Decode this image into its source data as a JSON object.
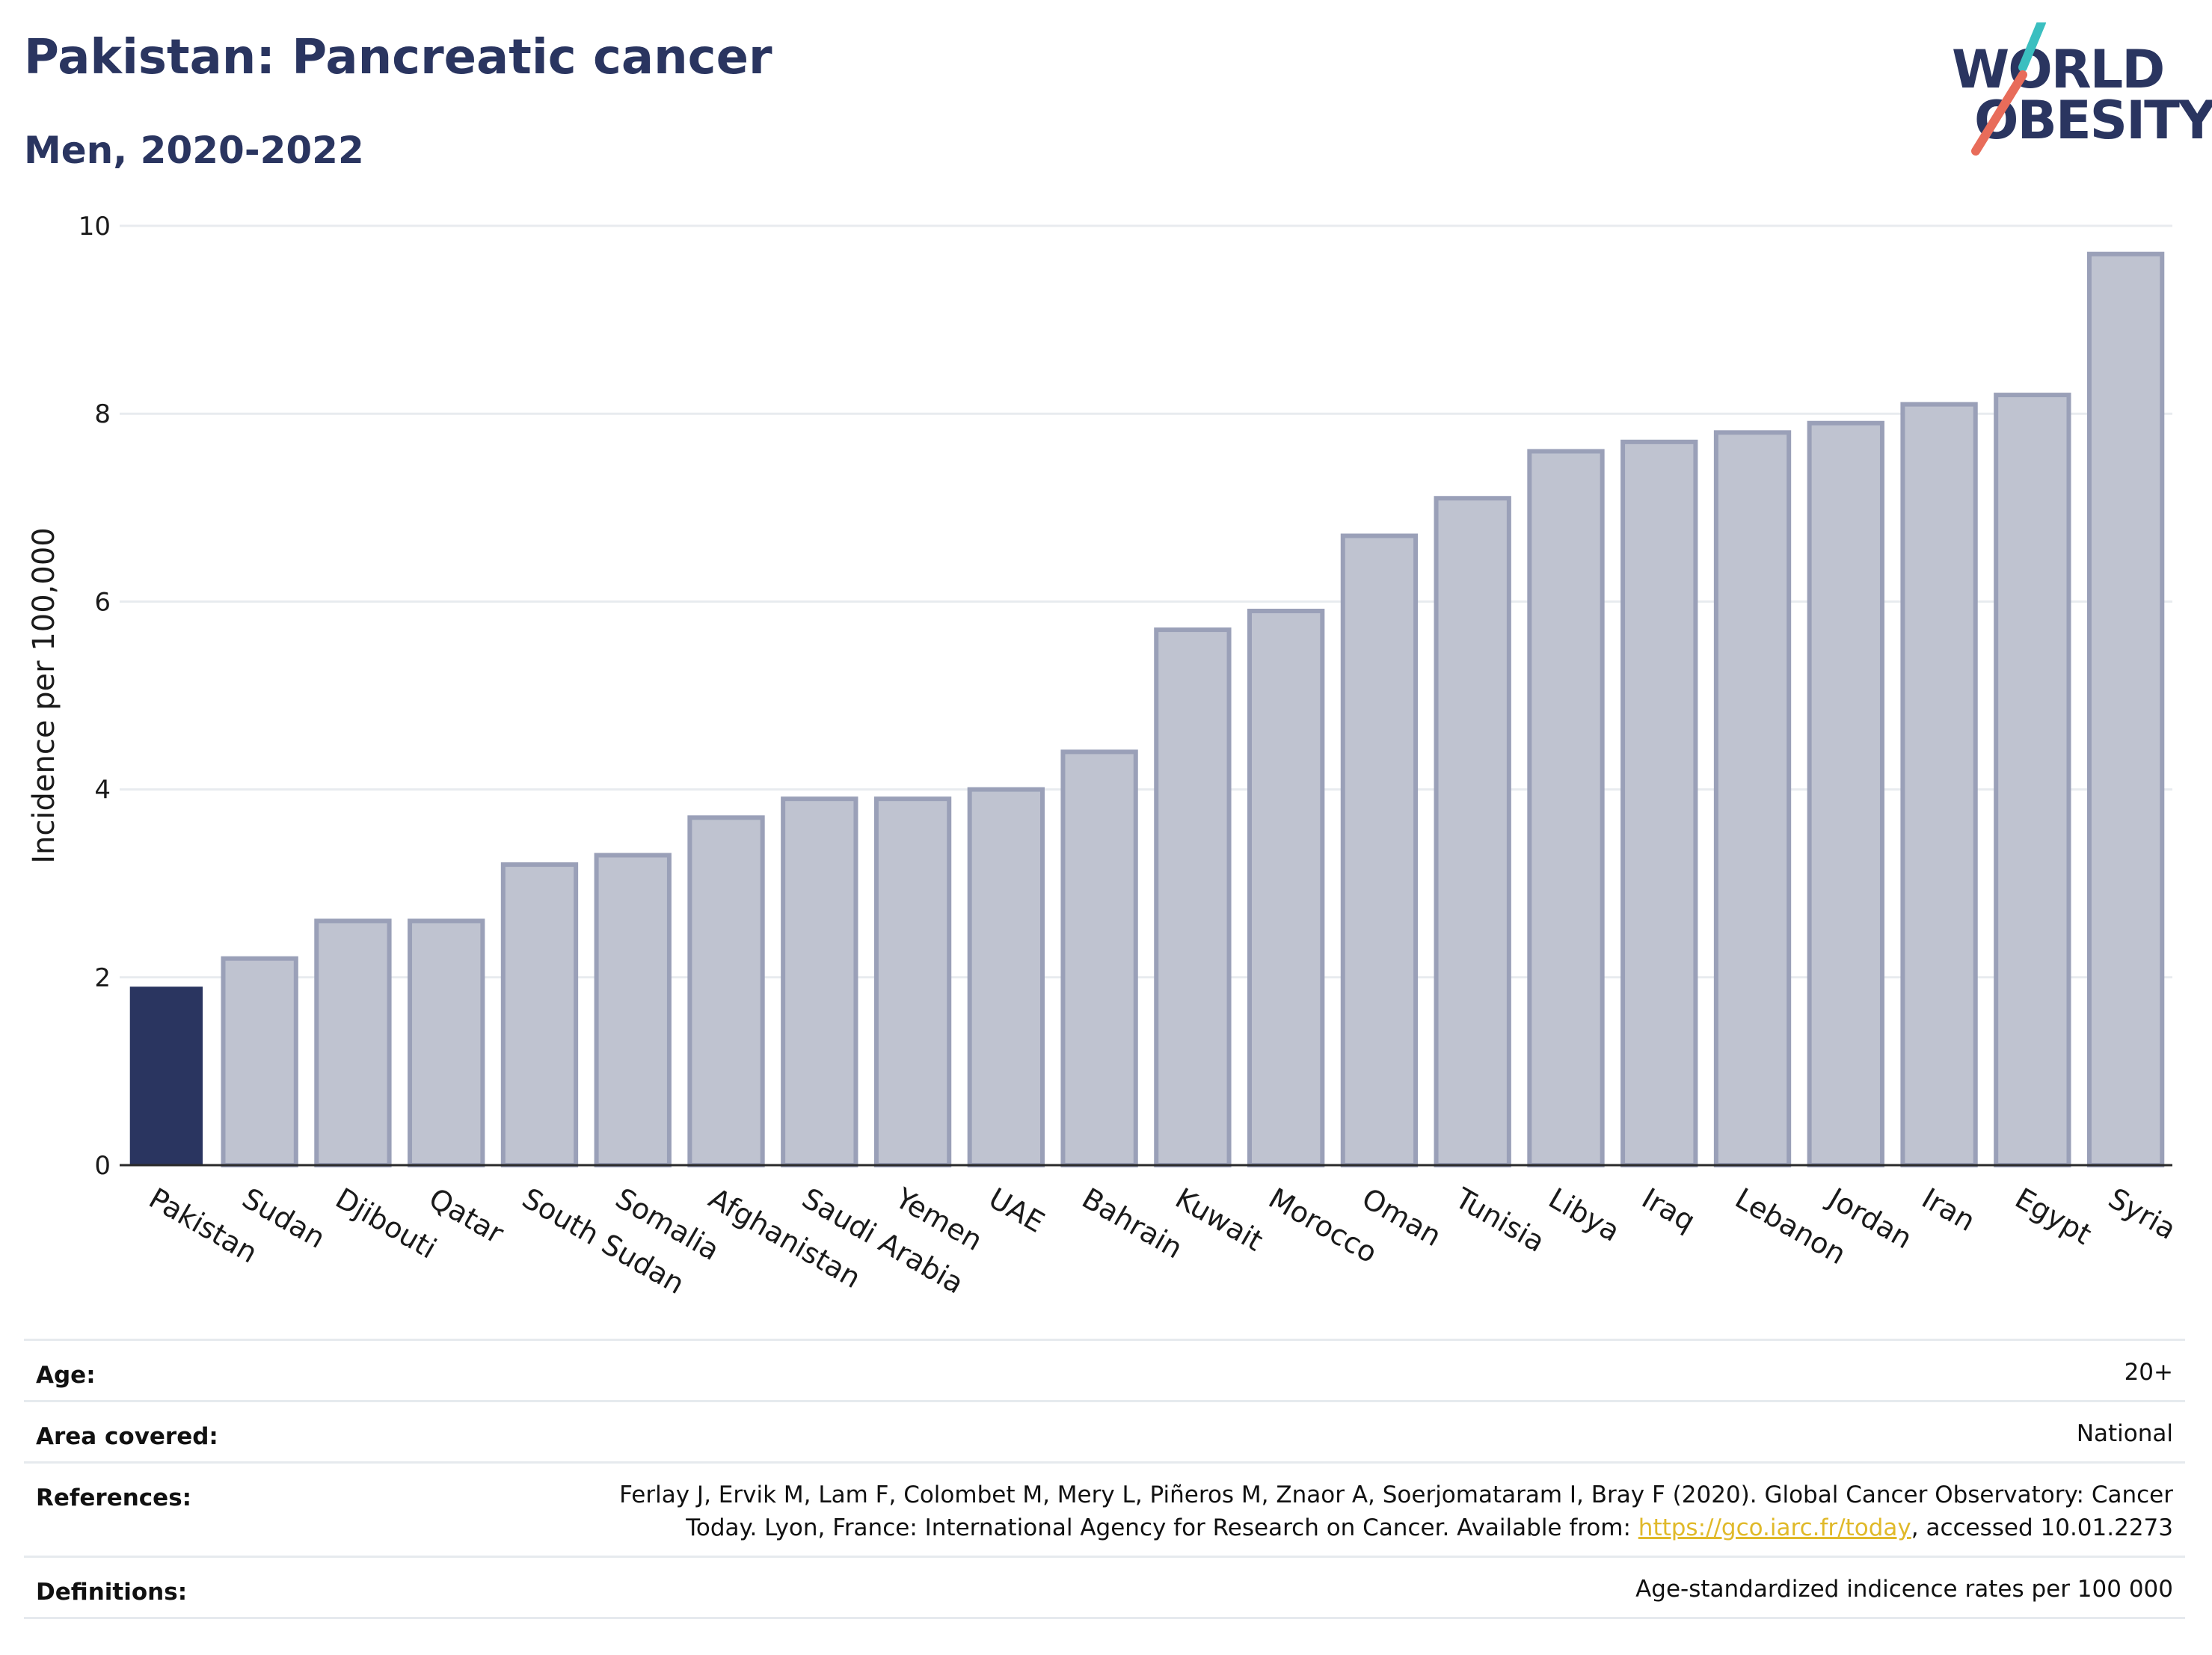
{
  "header": {
    "title": "Pakistan: Pancreatic cancer",
    "subtitle": "Men, 2020-2022"
  },
  "logo": {
    "line1": "WORLD",
    "line2": "OBESITY",
    "accent_colors": [
      "#3bbfc0",
      "#e86c5a"
    ]
  },
  "chart_data": {
    "type": "bar",
    "categories": [
      "Pakistan",
      "Sudan",
      "Djibouti",
      "Qatar",
      "South Sudan",
      "Somalia",
      "Afghanistan",
      "Saudi Arabia",
      "Yemen",
      "UAE",
      "Bahrain",
      "Kuwait",
      "Morocco",
      "Oman",
      "Tunisia",
      "Libya",
      "Iraq",
      "Lebanon",
      "Jordan",
      "Iran",
      "Egypt",
      "Syria"
    ],
    "values": [
      1.9,
      2.2,
      2.6,
      2.6,
      3.2,
      3.3,
      3.7,
      3.9,
      3.9,
      4.0,
      4.4,
      5.7,
      5.9,
      6.7,
      7.1,
      7.6,
      7.7,
      7.8,
      7.9,
      8.1,
      8.2,
      9.7
    ],
    "highlight": "Pakistan",
    "ylabel": "Incidence per 100,000",
    "xlabel": "",
    "ylim": [
      0,
      10
    ],
    "yticks": [
      0,
      2,
      4,
      6,
      8,
      10
    ],
    "grid": true,
    "colors": {
      "highlight": "#2a3560",
      "bar_fill": "#bfc3d0",
      "bar_stroke": "#9aa0b8"
    }
  },
  "meta": {
    "age_label": "Age:",
    "age_value": "20+",
    "area_label": "Area covered:",
    "area_value": "National",
    "references_label": "References:",
    "references_line1": "Ferlay J, Ervik M, Lam F, Colombet M, Mery L, Piñeros M, Znaor A, Soerjomataram I, Bray F (2020). Global Cancer Observatory: Cancer",
    "references_line2_pre": "Today. Lyon, France: International Agency for Research on Cancer. Available from: ",
    "references_link": "https://gco.iarc.fr/today",
    "references_line2_post": ", accessed 10.01.2273",
    "definitions_label": "Definitions:",
    "definitions_value": "Age-standardized indicence rates per 100 000"
  }
}
